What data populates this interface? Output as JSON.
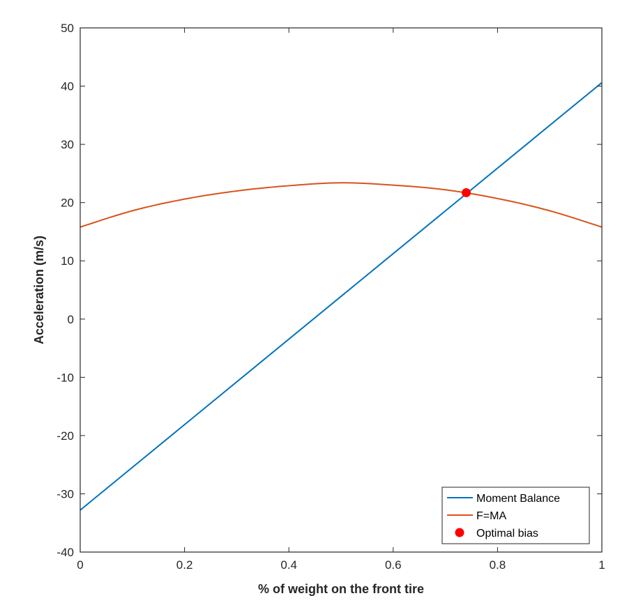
{
  "chart_data": {
    "type": "line",
    "xlabel": "% of weight on the front tire",
    "ylabel": "Acceleration (m/s)",
    "xlim": [
      0,
      1
    ],
    "ylim": [
      -40,
      50
    ],
    "xticks": [
      "0",
      "0.2",
      "0.4",
      "0.6",
      "0.8",
      "1"
    ],
    "yticks": [
      "-40",
      "-30",
      "-20",
      "-10",
      "0",
      "10",
      "20",
      "30",
      "40",
      "50"
    ],
    "grid": false,
    "legend_position": "bottom-right",
    "series": [
      {
        "name": "Moment Balance",
        "kind": "line",
        "color": "#0072BD",
        "x": [
          0,
          1
        ],
        "y": [
          -32.8,
          40.6
        ]
      },
      {
        "name": "F=MA",
        "kind": "line",
        "color": "#D95319",
        "x": [
          0,
          0.1,
          0.2,
          0.3,
          0.4,
          0.5,
          0.6,
          0.7,
          0.8,
          0.9,
          1.0
        ],
        "y": [
          15.8,
          18.6,
          20.6,
          22.0,
          22.9,
          23.4,
          23.0,
          22.2,
          20.7,
          18.6,
          15.8
        ]
      },
      {
        "name": "Optimal bias",
        "kind": "marker",
        "color": "#FF0000",
        "x": [
          0.74
        ],
        "y": [
          21.7
        ]
      }
    ]
  }
}
